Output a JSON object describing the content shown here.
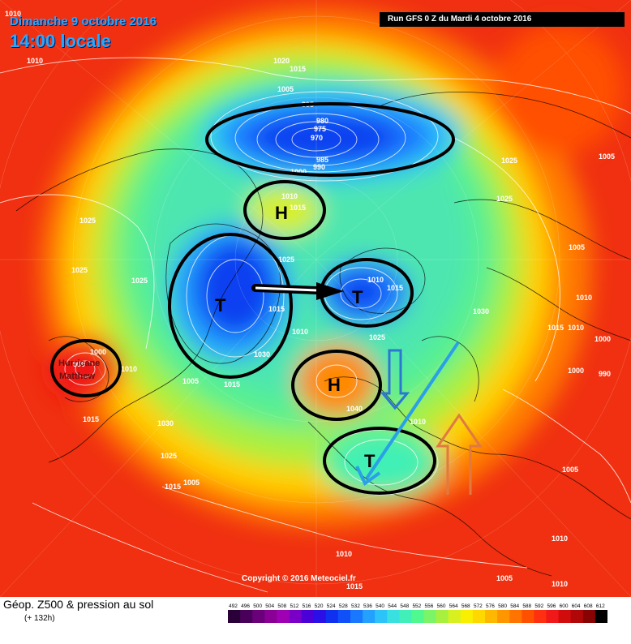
{
  "header": {
    "date": "Dimanche 9 octobre 2016",
    "time": "14:00 locale",
    "run": "Run GFS 0 Z du Mardi 4 octobre 2016"
  },
  "footer": {
    "field_title": "Géop. Z500 & pression au sol",
    "lead_time": "(+ 132h)",
    "scale_values": [
      "492",
      "496",
      "500",
      "504",
      "508",
      "512",
      "516",
      "520",
      "524",
      "528",
      "532",
      "536",
      "540",
      "544",
      "548",
      "552",
      "556",
      "560",
      "564",
      "568",
      "572",
      "576",
      "580",
      "584",
      "588",
      "592",
      "596",
      "600",
      "604",
      "608",
      "612"
    ],
    "scale_colors": [
      "#2a0038",
      "#48005a",
      "#6a007a",
      "#8a0096",
      "#a000b4",
      "#7a00c8",
      "#4b00d8",
      "#2a10e6",
      "#1030f0",
      "#1050f8",
      "#1a78ff",
      "#24a0ff",
      "#2cc4f8",
      "#38e0e0",
      "#40f0b8",
      "#50f890",
      "#7cf468",
      "#a8f040",
      "#d8f020",
      "#f8f000",
      "#ffd800",
      "#ffb800",
      "#ff9600",
      "#ff7400",
      "#ff5000",
      "#ff3010",
      "#f01818",
      "#d00c0c",
      "#b00808",
      "#880404",
      "#000000"
    ]
  },
  "copyright": "Copyright © 2016 Meteociel.fr",
  "systems": [
    {
      "label": "H",
      "type": "high"
    },
    {
      "label": "T",
      "type": "low"
    },
    {
      "label": "T",
      "type": "low"
    },
    {
      "label": "H",
      "type": "high"
    },
    {
      "label": "T",
      "type": "low"
    },
    {
      "label": "Hurricane Matthew",
      "type": "hurricane"
    }
  ],
  "isobar_labels": [
    "1010",
    "1020",
    "1015",
    "1005",
    "995",
    "980",
    "975",
    "970",
    "985",
    "990",
    "1000",
    "1025",
    "1005",
    "1010",
    "1015",
    "1010",
    "1015",
    "1025",
    "1025",
    "1025",
    "1005",
    "1015",
    "1010",
    "1010",
    "1030",
    "1015",
    "1000",
    "990",
    "1010",
    "1005",
    "1015",
    "1000",
    "1010",
    "1030",
    "1030",
    "1040",
    "1010",
    "1015",
    "1005",
    "1030",
    "1025",
    "1015",
    "1005",
    "1010",
    "1010",
    "1015",
    "1005",
    "1010",
    "1005"
  ]
}
